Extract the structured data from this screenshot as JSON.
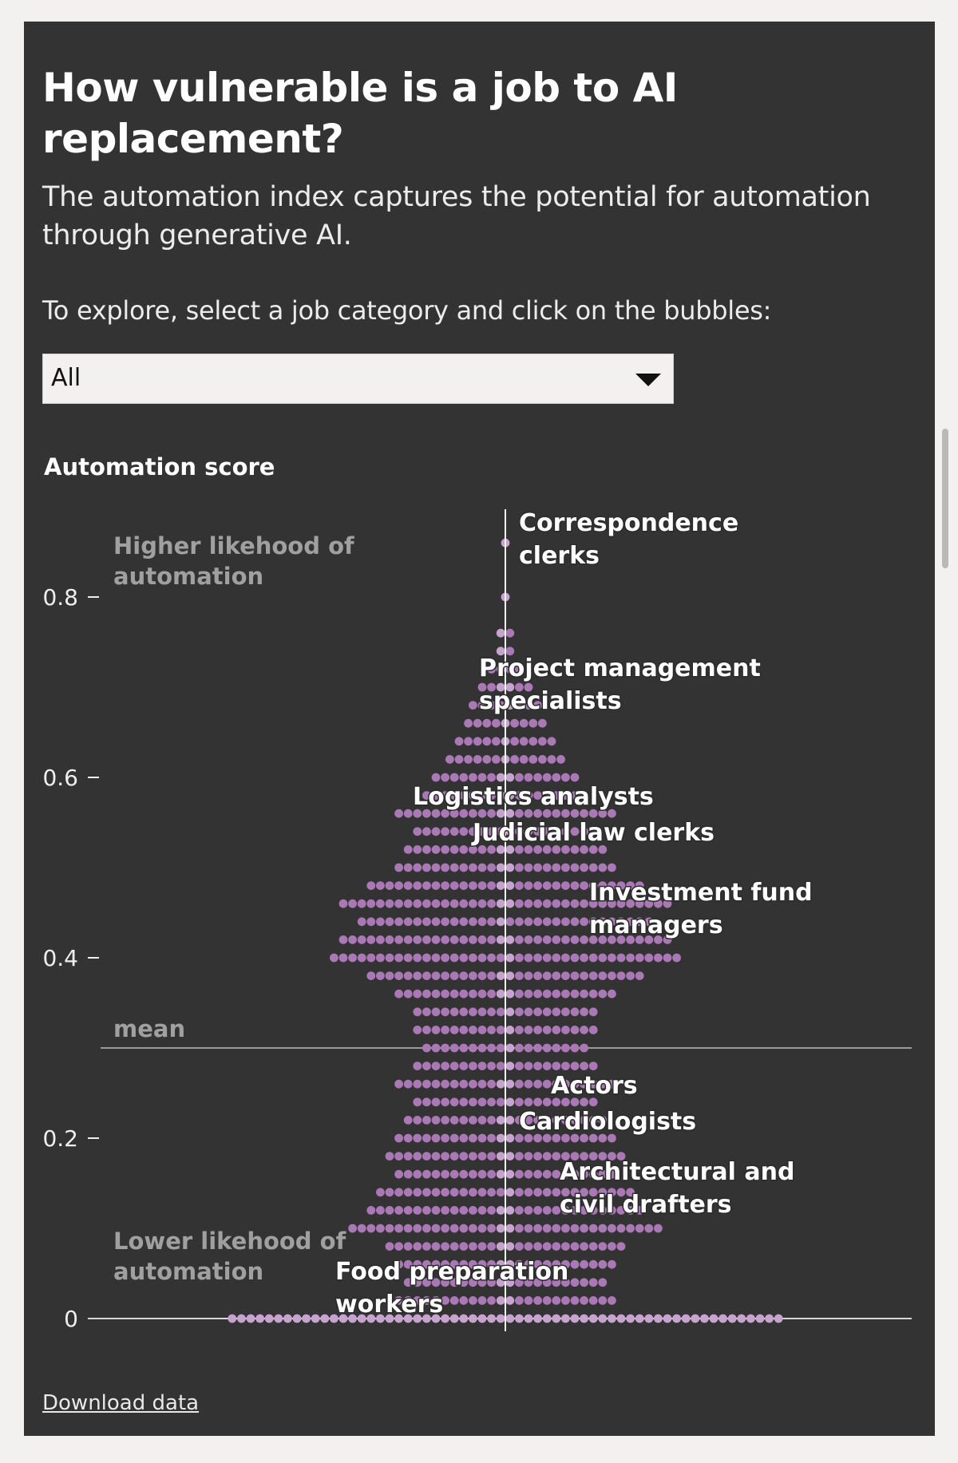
{
  "header": {
    "title": "How vulnerable is a job to AI replacement?",
    "subtitle": "The automation index captures the potential for automation through generative AI.",
    "instruction": "To explore, select a job category and click on the bubbles:"
  },
  "filter": {
    "selected": "All"
  },
  "footer": {
    "download_label": "Download data"
  },
  "colors": {
    "background": "#333333",
    "page": "#f2f1ef",
    "dot": "#a978b5",
    "dot_light": "#c7a3cf",
    "text": "#ffffff",
    "muted": "#a0a0a0",
    "axis_line": "#d8d8d8"
  },
  "chart_data": {
    "type": "scatter",
    "variant": "beeswarm",
    "ylabel": "Automation score",
    "ylim": [
      0,
      0.87
    ],
    "yticks": [
      {
        "value": 0.8,
        "label": "0.8"
      },
      {
        "value": 0.6,
        "label": "0.6"
      },
      {
        "value": 0.4,
        "label": "0.4"
      },
      {
        "value": 0.2,
        "label": "0.2"
      },
      {
        "value": 0,
        "label": "0"
      }
    ],
    "mean": {
      "value": 0.3,
      "label": "mean"
    },
    "top_note": "Higher likehood of automation",
    "bottom_note": "Lower likehood of automation",
    "annotations": [
      {
        "label": "Correspondence clerks",
        "value": 0.86
      },
      {
        "label": "Project management specialists",
        "value": 0.71
      },
      {
        "label": "Logistics analysts",
        "value": 0.58
      },
      {
        "label": "Judicial law clerks",
        "value": 0.54
      },
      {
        "label": "Investment fund managers",
        "value": 0.46
      },
      {
        "label": "Actors",
        "value": 0.26
      },
      {
        "label": "Cardiologists",
        "value": 0.22
      },
      {
        "label": "Architectural and civil drafters",
        "value": 0.16
      },
      {
        "label": "Food preparation workers",
        "value": 0.05
      }
    ],
    "distribution": [
      {
        "score": 0.86,
        "count": 1
      },
      {
        "score": 0.8,
        "count": 1
      },
      {
        "score": 0.76,
        "count": 2
      },
      {
        "score": 0.74,
        "count": 2
      },
      {
        "score": 0.72,
        "count": 4
      },
      {
        "score": 0.7,
        "count": 6
      },
      {
        "score": 0.68,
        "count": 8
      },
      {
        "score": 0.66,
        "count": 9
      },
      {
        "score": 0.64,
        "count": 11
      },
      {
        "score": 0.62,
        "count": 13
      },
      {
        "score": 0.6,
        "count": 16
      },
      {
        "score": 0.58,
        "count": 18
      },
      {
        "score": 0.56,
        "count": 24
      },
      {
        "score": 0.54,
        "count": 20
      },
      {
        "score": 0.52,
        "count": 22
      },
      {
        "score": 0.5,
        "count": 24
      },
      {
        "score": 0.48,
        "count": 30
      },
      {
        "score": 0.46,
        "count": 36
      },
      {
        "score": 0.44,
        "count": 32
      },
      {
        "score": 0.42,
        "count": 36
      },
      {
        "score": 0.4,
        "count": 38
      },
      {
        "score": 0.38,
        "count": 30
      },
      {
        "score": 0.36,
        "count": 24
      },
      {
        "score": 0.34,
        "count": 20
      },
      {
        "score": 0.32,
        "count": 20
      },
      {
        "score": 0.3,
        "count": 18
      },
      {
        "score": 0.28,
        "count": 20
      },
      {
        "score": 0.26,
        "count": 24
      },
      {
        "score": 0.24,
        "count": 20
      },
      {
        "score": 0.22,
        "count": 22
      },
      {
        "score": 0.2,
        "count": 24
      },
      {
        "score": 0.18,
        "count": 26
      },
      {
        "score": 0.16,
        "count": 24
      },
      {
        "score": 0.14,
        "count": 28
      },
      {
        "score": 0.12,
        "count": 30
      },
      {
        "score": 0.1,
        "count": 34
      },
      {
        "score": 0.08,
        "count": 26
      },
      {
        "score": 0.06,
        "count": 24
      },
      {
        "score": 0.04,
        "count": 22
      },
      {
        "score": 0.02,
        "count": 24
      },
      {
        "score": 0,
        "count": 60
      }
    ]
  }
}
